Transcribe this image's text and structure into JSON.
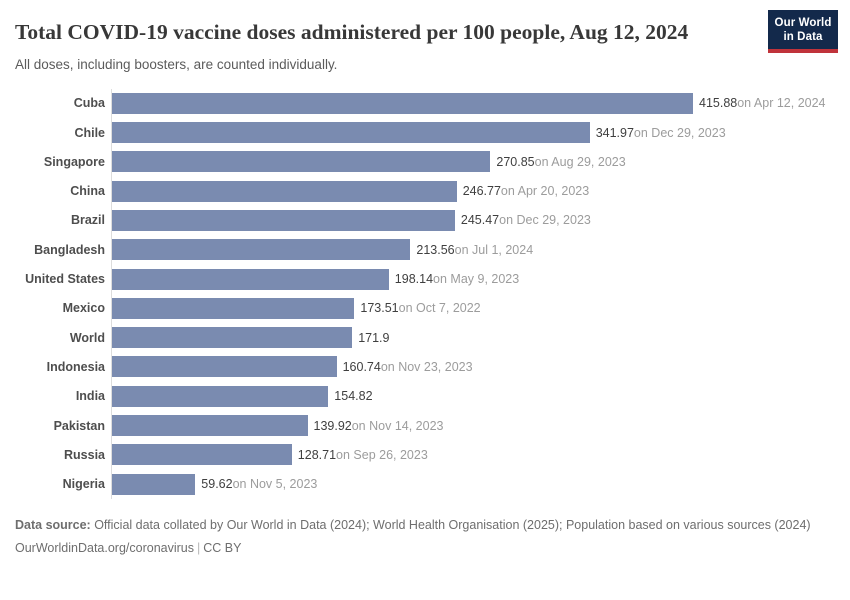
{
  "header": {
    "title": "Total COVID-19 vaccine doses administered per 100 people, Aug 12, 2024",
    "subtitle": "All doses, including boosters, are counted individually.",
    "logo": {
      "line1": "Our World",
      "line2": "in Data"
    }
  },
  "chart_data": {
    "type": "bar",
    "orientation": "horizontal",
    "title": "Total COVID-19 vaccine doses administered per 100 people, Aug 12, 2024",
    "subtitle": "All doses, including boosters, are counted individually.",
    "categories": [
      "Cuba",
      "Chile",
      "Singapore",
      "China",
      "Brazil",
      "Bangladesh",
      "United States",
      "Mexico",
      "World",
      "Indonesia",
      "India",
      "Pakistan",
      "Russia",
      "Nigeria"
    ],
    "values": [
      415.88,
      341.97,
      270.85,
      246.77,
      245.47,
      213.56,
      198.14,
      173.51,
      171.9,
      160.74,
      154.82,
      139.92,
      128.71,
      59.62
    ],
    "value_labels": [
      "415.88",
      "341.97",
      "270.85",
      "246.77",
      "245.47",
      "213.56",
      "198.14",
      "173.51",
      "171.9",
      "160.74",
      "154.82",
      "139.92",
      "128.71",
      "59.62"
    ],
    "date_labels": [
      "on Apr 12, 2024",
      "on Dec 29, 2023",
      "on Aug 29, 2023",
      "on Apr 20, 2023",
      "on Dec 29, 2023",
      "on Jul 1, 2024",
      "on May 9, 2023",
      "on Oct 7, 2022",
      "",
      "on Nov 23, 2023",
      "",
      "on Nov 14, 2023",
      "on Sep 26, 2023",
      "on Nov 5, 2023"
    ],
    "xlim": [
      0,
      415.88
    ],
    "xlabel": "",
    "ylabel": "",
    "grid": false,
    "legend": "none",
    "bar_color": "#7a8bb0"
  },
  "footer": {
    "datasource_label": "Data source:",
    "datasource_text": " Official data collated by Our World in Data (2024); World Health Organisation (2025); Population based on various sources (2024)",
    "link_text": "OurWorldinData.org/coronavirus",
    "separator": "|",
    "license": "CC BY"
  },
  "colors": {
    "bar": "#7a8bb0",
    "logo_navy": "#13294b",
    "logo_red": "#c0333b",
    "title": "#383838",
    "subtitle": "#5b5b5b",
    "category_label": "#4e4e4e",
    "value": "#3f3f3f",
    "date": "#9c9c9c",
    "footer": "#6e6e6e",
    "axis_line": "#dddddd"
  }
}
